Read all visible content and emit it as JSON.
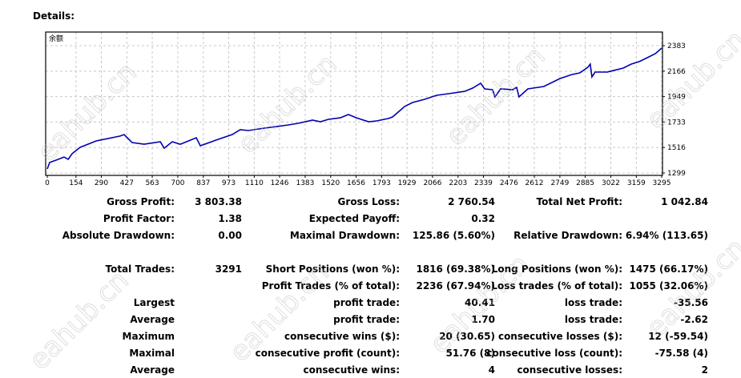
{
  "header": {
    "title": "Details:"
  },
  "watermark": "eahub.cn",
  "chart_data": {
    "type": "line",
    "title": "余额",
    "color": "#0000b0",
    "xlim": [
      0,
      3295
    ],
    "ylim": [
      1299,
      2383
    ],
    "x_ticks": [
      0,
      154,
      290,
      427,
      563,
      700,
      837,
      973,
      1110,
      1246,
      1383,
      1520,
      1656,
      1793,
      1929,
      2066,
      2203,
      2339,
      2476,
      2612,
      2749,
      2885,
      3022,
      3159,
      3295
    ],
    "y_ticks": [
      2383,
      2166,
      1949,
      1733,
      1516,
      1299
    ],
    "grid": true,
    "series": [
      {
        "name": "余额",
        "points": [
          [
            0,
            1333
          ],
          [
            13,
            1388
          ],
          [
            47,
            1408
          ],
          [
            90,
            1435
          ],
          [
            112,
            1415
          ],
          [
            133,
            1463
          ],
          [
            176,
            1517
          ],
          [
            262,
            1572
          ],
          [
            391,
            1613
          ],
          [
            412,
            1626
          ],
          [
            455,
            1558
          ],
          [
            520,
            1544
          ],
          [
            606,
            1565
          ],
          [
            627,
            1510
          ],
          [
            670,
            1565
          ],
          [
            713,
            1544
          ],
          [
            799,
            1599
          ],
          [
            821,
            1531
          ],
          [
            906,
            1579
          ],
          [
            992,
            1626
          ],
          [
            1035,
            1667
          ],
          [
            1078,
            1660
          ],
          [
            1164,
            1681
          ],
          [
            1229,
            1694
          ],
          [
            1293,
            1708
          ],
          [
            1345,
            1722
          ],
          [
            1422,
            1749
          ],
          [
            1465,
            1735
          ],
          [
            1508,
            1756
          ],
          [
            1572,
            1769
          ],
          [
            1615,
            1797
          ],
          [
            1658,
            1769
          ],
          [
            1723,
            1735
          ],
          [
            1766,
            1742
          ],
          [
            1830,
            1763
          ],
          [
            1852,
            1776
          ],
          [
            1916,
            1865
          ],
          [
            1959,
            1899
          ],
          [
            2024,
            1926
          ],
          [
            2088,
            1960
          ],
          [
            2152,
            1974
          ],
          [
            2238,
            1994
          ],
          [
            2281,
            2022
          ],
          [
            2324,
            2063
          ],
          [
            2345,
            2015
          ],
          [
            2388,
            2008
          ],
          [
            2401,
            1947
          ],
          [
            2431,
            2015
          ],
          [
            2496,
            2008
          ],
          [
            2517,
            2028
          ],
          [
            2530,
            1947
          ],
          [
            2577,
            2015
          ],
          [
            2663,
            2035
          ],
          [
            2749,
            2103
          ],
          [
            2813,
            2137
          ],
          [
            2856,
            2151
          ],
          [
            2899,
            2199
          ],
          [
            2912,
            2226
          ],
          [
            2921,
            2117
          ],
          [
            2938,
            2158
          ],
          [
            3003,
            2158
          ],
          [
            3089,
            2192
          ],
          [
            3132,
            2226
          ],
          [
            3175,
            2247
          ],
          [
            3218,
            2281
          ],
          [
            3261,
            2315
          ],
          [
            3295,
            2362
          ]
        ]
      }
    ]
  },
  "stats": [
    [
      {
        "label": "Gross Profit:",
        "value": "3 803.38"
      },
      {
        "label": "Gross Loss:",
        "value": "2 760.54"
      },
      {
        "label": "Total Net Profit:",
        "value": "1 042.84"
      }
    ],
    [
      {
        "label": "Profit Factor:",
        "value": "1.38"
      },
      {
        "label": "Expected Payoff:",
        "value": "0.32"
      },
      {
        "label": "",
        "value": ""
      }
    ],
    [
      {
        "label": "Absolute Drawdown:",
        "value": "0.00"
      },
      {
        "label": "Maximal Drawdown:",
        "value": "125.86 (5.60%)"
      },
      {
        "label": "Relative Drawdown:",
        "value": "6.94% (113.65)"
      }
    ],
    [
      {
        "label": "Total Trades:",
        "value": "3291"
      },
      {
        "label": "Short Positions (won %):",
        "value": "1816 (69.38%)"
      },
      {
        "label": "Long Positions (won %):",
        "value": "1475 (66.17%)"
      }
    ],
    [
      {
        "label": "",
        "value": ""
      },
      {
        "label": "Profit Trades (% of total):",
        "value": "2236 (67.94%)"
      },
      {
        "label": "Loss trades (% of total):",
        "value": "1055 (32.06%)"
      }
    ],
    [
      {
        "label": "Largest",
        "value": ""
      },
      {
        "label": "profit trade:",
        "value": "40.41"
      },
      {
        "label": "loss trade:",
        "value": "-35.56"
      }
    ],
    [
      {
        "label": "Average",
        "value": ""
      },
      {
        "label": "profit trade:",
        "value": "1.70"
      },
      {
        "label": "loss trade:",
        "value": "-2.62"
      }
    ],
    [
      {
        "label": "Maximum",
        "value": ""
      },
      {
        "label": "consecutive wins ($):",
        "value": "20 (30.65)"
      },
      {
        "label": "consecutive losses ($):",
        "value": "12 (-59.54)"
      }
    ],
    [
      {
        "label": "Maximal",
        "value": ""
      },
      {
        "label": "consecutive profit (count):",
        "value": "51.76 (8)"
      },
      {
        "label": "consecutive loss (count):",
        "value": "-75.58 (4)"
      }
    ],
    [
      {
        "label": "Average",
        "value": ""
      },
      {
        "label": "consecutive wins:",
        "value": "4"
      },
      {
        "label": "consecutive losses:",
        "value": "2"
      }
    ]
  ]
}
